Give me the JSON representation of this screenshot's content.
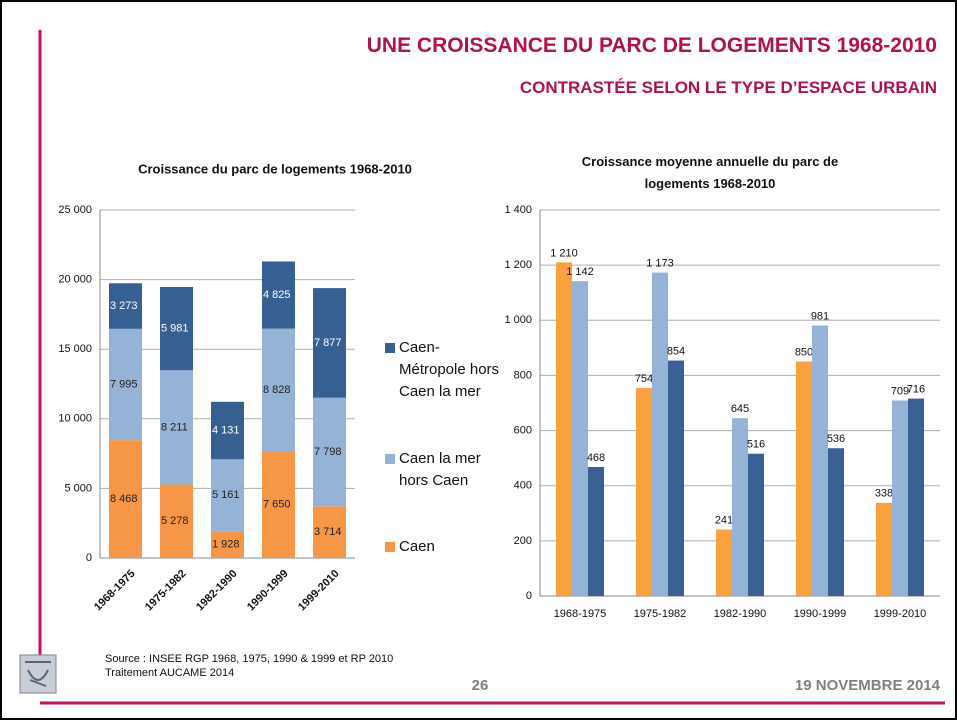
{
  "title_lines": [
    "UNE CROISSANCE DU PARC DE LOGEMENTS 1968-2010",
    "CONTRASTÉE SELON LE TYPE D’ESPACE URBAIN"
  ],
  "source_lines": [
    "Source : INSEE  RGP 1968, 1975, 1990 & 1999 et RP 2010",
    "Traitement AUCAME 2014"
  ],
  "page_number": "26",
  "date": "19 NOVEMBRE 2014",
  "chart_data": [
    {
      "type": "bar",
      "stacked": true,
      "title": "Croissance du parc de logements 1968-2010",
      "categories": [
        "1968-1975",
        "1975-1982",
        "1982-1990",
        "1990-1999",
        "1999-2010"
      ],
      "series": [
        {
          "name": "Caen",
          "color": "#f79646",
          "label_color": "#222",
          "values": [
            8468,
            5278,
            1928,
            7650,
            3714
          ],
          "value_labels": [
            "8 468",
            "5 278",
            "1 928",
            "7 650",
            "3 714"
          ]
        },
        {
          "name": "Caen la mer hors Caen",
          "color": "#95b3d7",
          "label_color": "#222",
          "values": [
            7995,
            8211,
            5161,
            8828,
            7798
          ],
          "value_labels": [
            "7 995",
            "8 211",
            "5 161",
            "8 828",
            "7 798"
          ]
        },
        {
          "name": "Caen-Métropole hors Caen la mer",
          "color": "#366092",
          "label_color": "#fff",
          "values": [
            3273,
            5981,
            4131,
            4825,
            7877
          ],
          "value_labels": [
            "3 273",
            "5 981",
            "4 131",
            "4 825",
            "7 877"
          ]
        }
      ],
      "ylim": [
        0,
        25000
      ],
      "yticks": [
        0,
        {
          "value": 5000,
          "label": "5 000"
        },
        {
          "value": 10000,
          "label": "10 000"
        },
        {
          "value": 15000,
          "label": "15 000"
        },
        {
          "value": 20000,
          "label": "20 000"
        },
        {
          "value": 25000,
          "label": "25 000"
        }
      ],
      "grid": true,
      "legend": "right"
    },
    {
      "type": "bar",
      "stacked": false,
      "title": "Croissance moyenne annuelle du parc de logements 1968-2010",
      "categories": [
        "1968-1975",
        "1975-1982",
        "1982-1990",
        "1990-1999",
        "1999-2010"
      ],
      "series": [
        {
          "color": "#f9a03f",
          "values": [
            1210,
            754,
            241,
            850,
            338
          ],
          "value_labels": [
            "1 210",
            "754",
            "241",
            "850",
            "338"
          ]
        },
        {
          "color": "#95b3d7",
          "values": [
            1142,
            1173,
            645,
            981,
            709
          ],
          "value_labels": [
            "1 142",
            "1 173",
            "645",
            "981",
            "709"
          ]
        },
        {
          "color": "#3a6096",
          "values": [
            468,
            854,
            516,
            536,
            716
          ],
          "value_labels": [
            "468",
            "854",
            "516",
            "536",
            "716"
          ]
        }
      ],
      "ylim": [
        0,
        1400
      ],
      "yticks": [
        0,
        200,
        400,
        600,
        800,
        {
          "value": 1000,
          "label": "1 000"
        },
        {
          "value": 1200,
          "label": "1 200"
        },
        {
          "value": 1400,
          "label": "1 400"
        }
      ],
      "grid": true
    }
  ]
}
